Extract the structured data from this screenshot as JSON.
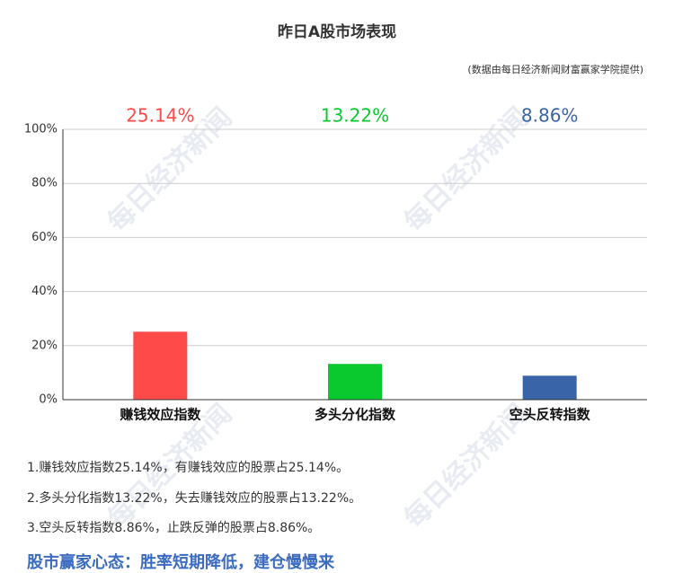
{
  "chart_data": {
    "type": "bar",
    "title": "昨日A股市场表现",
    "subtitle": "(数据由每日经济新闻财富赢家学院提供)",
    "categories": [
      "赚钱效应指数",
      "多头分化指数",
      "空头反转指数"
    ],
    "values": [
      25.14,
      13.22,
      8.86
    ],
    "value_labels": [
      "25.14%",
      "13.22%",
      "8.86%"
    ],
    "colors": [
      "#ff4a4a",
      "#0ac92e",
      "#3a64a8"
    ],
    "ylim": [
      0,
      100
    ],
    "yticks": [
      {
        "value": 0,
        "label": "0%"
      },
      {
        "value": 20,
        "label": "20%"
      },
      {
        "value": 40,
        "label": "40%"
      },
      {
        "value": 60,
        "label": "60%"
      },
      {
        "value": 80,
        "label": "80%"
      },
      {
        "value": 100,
        "label": "100%"
      }
    ],
    "grid": true
  },
  "notes": [
    "1.赚钱效应指数25.14%，有赚钱效应的股票占25.14%。",
    "2.多头分化指数13.22%，失去赚钱效应的股票占13.22%。",
    "3.空头反转指数8.86%，止跌反弹的股票占8.86%。"
  ],
  "slogan": "股市赢家心态：胜率短期降低，建仓慢慢来",
  "watermark": "每日经济新闻"
}
